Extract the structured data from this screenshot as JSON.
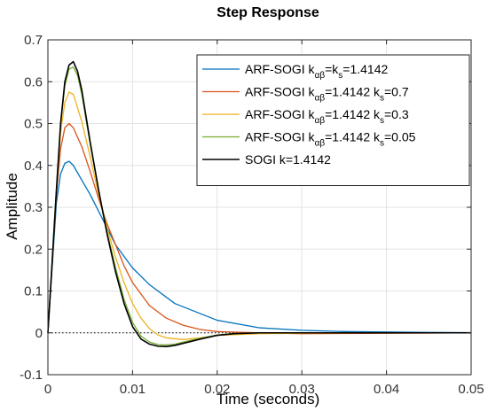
{
  "chart_data": {
    "type": "line",
    "title": "Step Response",
    "xlabel": "Time (seconds)",
    "ylabel": "Amplitude",
    "xlim": [
      0,
      0.05
    ],
    "ylim": [
      -0.1,
      0.7
    ],
    "x_ticks": [
      0,
      0.01,
      0.02,
      0.03,
      0.04,
      0.05
    ],
    "x_tick_labels": [
      "0",
      "0.01",
      "0.02",
      "0.03",
      "0.04",
      "0.05"
    ],
    "y_ticks": [
      -0.1,
      0,
      0.1,
      0.2,
      0.3,
      0.4,
      0.5,
      0.6,
      0.7
    ],
    "y_tick_labels": [
      "-0.1",
      "0",
      "0.1",
      "0.2",
      "0.3",
      "0.4",
      "0.5",
      "0.6",
      "0.7"
    ],
    "grid": true,
    "legend_position": "top-right",
    "reference_line": {
      "y": 0,
      "style": "dotted",
      "color": "#000000"
    },
    "series": [
      {
        "name_parts": [
          "ARF-SOGI k",
          "αβ",
          "=k",
          "s",
          "=1.4142"
        ],
        "color": "#0072BD",
        "x": [
          0,
          0.001,
          0.0015,
          0.002,
          0.0025,
          0.003,
          0.004,
          0.005,
          0.006,
          0.007,
          0.008,
          0.01,
          0.012,
          0.015,
          0.02,
          0.025,
          0.03,
          0.035,
          0.04,
          0.045,
          0.05
        ],
        "values": [
          0,
          0.31,
          0.38,
          0.405,
          0.41,
          0.4,
          0.365,
          0.33,
          0.29,
          0.25,
          0.21,
          0.155,
          0.115,
          0.07,
          0.03,
          0.012,
          0.006,
          0.003,
          0.002,
          0.001,
          0.0005
        ]
      },
      {
        "name_parts": [
          "ARF-SOGI k",
          "αβ",
          "=1.4142 k",
          "s",
          "=0.7"
        ],
        "color": "#D95319",
        "x": [
          0,
          0.001,
          0.0015,
          0.002,
          0.0025,
          0.003,
          0.004,
          0.005,
          0.006,
          0.007,
          0.008,
          0.009,
          0.01,
          0.012,
          0.014,
          0.016,
          0.018,
          0.02,
          0.025,
          0.03,
          0.04,
          0.05
        ],
        "values": [
          0,
          0.33,
          0.44,
          0.49,
          0.5,
          0.49,
          0.445,
          0.385,
          0.32,
          0.26,
          0.21,
          0.16,
          0.12,
          0.065,
          0.035,
          0.018,
          0.008,
          0.003,
          0.0,
          -0.002,
          -0.001,
          0
        ]
      },
      {
        "name_parts": [
          "ARF-SOGI k",
          "αβ",
          "=1.4142 k",
          "s",
          "=0.3"
        ],
        "color": "#EDB120",
        "x": [
          0,
          0.001,
          0.0015,
          0.002,
          0.0025,
          0.003,
          0.004,
          0.005,
          0.006,
          0.007,
          0.008,
          0.009,
          0.01,
          0.011,
          0.012,
          0.013,
          0.014,
          0.016,
          0.018,
          0.02,
          0.025,
          0.03,
          0.04,
          0.05
        ],
        "values": [
          0,
          0.34,
          0.48,
          0.55,
          0.575,
          0.57,
          0.505,
          0.42,
          0.33,
          0.25,
          0.18,
          0.12,
          0.07,
          0.035,
          0.01,
          -0.005,
          -0.012,
          -0.016,
          -0.012,
          -0.006,
          -0.002,
          -0.001,
          0,
          0
        ]
      },
      {
        "name_parts": [
          "ARF-SOGI k",
          "αβ",
          "=1.4142 k",
          "s",
          "=0.05"
        ],
        "color": "#77AC30",
        "x": [
          0,
          0.001,
          0.0015,
          0.002,
          0.0025,
          0.003,
          0.0035,
          0.004,
          0.005,
          0.006,
          0.007,
          0.008,
          0.009,
          0.01,
          0.011,
          0.012,
          0.013,
          0.014,
          0.015,
          0.016,
          0.018,
          0.02,
          0.022,
          0.025,
          0.03,
          0.04,
          0.05
        ],
        "values": [
          0,
          0.34,
          0.5,
          0.59,
          0.63,
          0.635,
          0.615,
          0.57,
          0.45,
          0.34,
          0.24,
          0.155,
          0.08,
          0.025,
          -0.008,
          -0.022,
          -0.028,
          -0.029,
          -0.027,
          -0.022,
          -0.013,
          -0.005,
          -0.002,
          0,
          0,
          0,
          0
        ]
      },
      {
        "name": "SOGI k=1.4142",
        "color": "#000000",
        "x": [
          0,
          0.001,
          0.0015,
          0.002,
          0.0025,
          0.003,
          0.0035,
          0.004,
          0.005,
          0.006,
          0.007,
          0.008,
          0.009,
          0.01,
          0.011,
          0.012,
          0.013,
          0.014,
          0.015,
          0.016,
          0.018,
          0.02,
          0.022,
          0.025,
          0.03,
          0.04,
          0.05
        ],
        "values": [
          0,
          0.34,
          0.5,
          0.6,
          0.64,
          0.648,
          0.625,
          0.58,
          0.455,
          0.34,
          0.235,
          0.145,
          0.07,
          0.015,
          -0.015,
          -0.027,
          -0.032,
          -0.033,
          -0.03,
          -0.025,
          -0.015,
          -0.006,
          -0.002,
          0,
          0,
          0,
          0
        ]
      }
    ]
  }
}
